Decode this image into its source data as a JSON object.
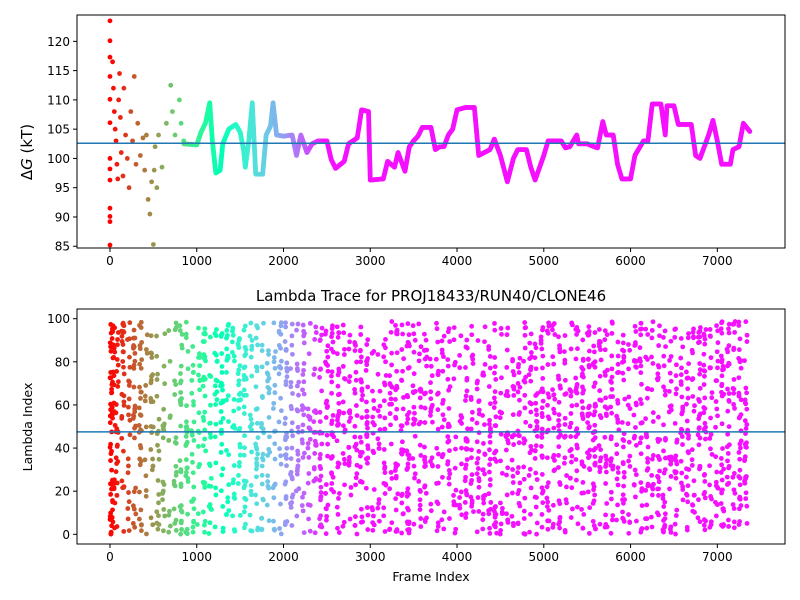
{
  "colors": {
    "axis": "#000000",
    "hline": "#1f77b4",
    "colormap": "rainbow"
  },
  "chart_data": [
    {
      "type": "scatter",
      "title": "",
      "xlabel": "",
      "ylabel": "ΔG (kT)",
      "ylabel_parts": {
        "delta": "Δ",
        "var": "G",
        "unit": " (kT)"
      },
      "xlim": [
        -380,
        7780
      ],
      "ylim": [
        84.7,
        124.5
      ],
      "xticks": [
        0,
        1000,
        2000,
        3000,
        4000,
        5000,
        6000,
        7000
      ],
      "yticks": [
        85,
        90,
        95,
        100,
        105,
        110,
        115,
        120
      ],
      "hline": 102.6,
      "grid": false,
      "color_by": "x, rainbow reversed (red at 0, violet after ~2500)",
      "noisy_points": [
        [
          0,
          123.5
        ],
        [
          0,
          120.1
        ],
        [
          0,
          117.3
        ],
        [
          0,
          114.0
        ],
        [
          0,
          110.1
        ],
        [
          0,
          106.1
        ],
        [
          0,
          100.0
        ],
        [
          0,
          98.2
        ],
        [
          0,
          96.3
        ],
        [
          0,
          91.5
        ],
        [
          0,
          89.2
        ],
        [
          0,
          90.1
        ],
        [
          0,
          85.2
        ],
        [
          30,
          116.5
        ],
        [
          40,
          112.0
        ],
        [
          50,
          108.0
        ],
        [
          60,
          105.0
        ],
        [
          70,
          103.0
        ],
        [
          80,
          99.0
        ],
        [
          90,
          96.5
        ],
        [
          100,
          110.0
        ],
        [
          110,
          114.5
        ],
        [
          120,
          107.0
        ],
        [
          130,
          101.0
        ],
        [
          150,
          97.0
        ],
        [
          160,
          112.0
        ],
        [
          180,
          104.0
        ],
        [
          200,
          100.0
        ],
        [
          220,
          95.0
        ],
        [
          240,
          108.0
        ],
        [
          260,
          103.0
        ],
        [
          280,
          114.0
        ],
        [
          300,
          99.0
        ],
        [
          320,
          106.0
        ],
        [
          350,
          100.5
        ],
        [
          380,
          103.5
        ],
        [
          400,
          98.0
        ],
        [
          420,
          104.0
        ],
        [
          440,
          93.0
        ],
        [
          460,
          90.5
        ],
        [
          480,
          96.0
        ],
        [
          500,
          85.3
        ],
        [
          510,
          98.0
        ],
        [
          520,
          102.0
        ],
        [
          540,
          95.0
        ],
        [
          560,
          104.0
        ],
        [
          600,
          98.5
        ],
        [
          650,
          106.0
        ],
        [
          700,
          112.5
        ],
        [
          720,
          108.0
        ],
        [
          750,
          104.0
        ],
        [
          800,
          110.0
        ],
        [
          820,
          106.0
        ],
        [
          850,
          103.0
        ]
      ],
      "trace": [
        [
          850,
          102.5
        ],
        [
          1000,
          102.3
        ],
        [
          1050,
          104.5
        ],
        [
          1100,
          106.0
        ],
        [
          1150,
          109.5
        ],
        [
          1180,
          103.0
        ],
        [
          1220,
          97.5
        ],
        [
          1270,
          98.0
        ],
        [
          1300,
          102.5
        ],
        [
          1370,
          105.0
        ],
        [
          1450,
          105.8
        ],
        [
          1500,
          104.5
        ],
        [
          1540,
          101.5
        ],
        [
          1560,
          98.5
        ],
        [
          1600,
          103.0
        ],
        [
          1640,
          109.5
        ],
        [
          1680,
          97.3
        ],
        [
          1760,
          97.3
        ],
        [
          1800,
          104.0
        ],
        [
          1850,
          105.5
        ],
        [
          1880,
          109.5
        ],
        [
          1920,
          104.0
        ],
        [
          2000,
          103.8
        ],
        [
          2100,
          104.0
        ],
        [
          2150,
          100.5
        ],
        [
          2200,
          104.0
        ],
        [
          2270,
          101.0
        ],
        [
          2330,
          102.5
        ],
        [
          2400,
          103.0
        ],
        [
          2500,
          103.0
        ],
        [
          2550,
          99.8
        ],
        [
          2600,
          98.3
        ],
        [
          2700,
          99.5
        ],
        [
          2750,
          102.5
        ],
        [
          2850,
          103.5
        ],
        [
          2900,
          108.3
        ],
        [
          2980,
          108.0
        ],
        [
          3000,
          96.3
        ],
        [
          3150,
          96.5
        ],
        [
          3200,
          99.5
        ],
        [
          3280,
          98.5
        ],
        [
          3320,
          101.0
        ],
        [
          3400,
          97.8
        ],
        [
          3450,
          102.0
        ],
        [
          3500,
          103.0
        ],
        [
          3550,
          103.8
        ],
        [
          3600,
          105.3
        ],
        [
          3700,
          105.3
        ],
        [
          3750,
          101.5
        ],
        [
          3800,
          102.0
        ],
        [
          3850,
          102.0
        ],
        [
          3900,
          104.0
        ],
        [
          3950,
          105.0
        ],
        [
          4000,
          108.3
        ],
        [
          4100,
          108.7
        ],
        [
          4200,
          108.7
        ],
        [
          4250,
          100.5
        ],
        [
          4380,
          101.5
        ],
        [
          4430,
          103.3
        ],
        [
          4500,
          100.5
        ],
        [
          4580,
          96.0
        ],
        [
          4650,
          100.0
        ],
        [
          4700,
          101.5
        ],
        [
          4800,
          101.5
        ],
        [
          4850,
          98.5
        ],
        [
          4900,
          96.3
        ],
        [
          5000,
          100.5
        ],
        [
          5050,
          103.0
        ],
        [
          5200,
          103.0
        ],
        [
          5250,
          101.8
        ],
        [
          5300,
          102.0
        ],
        [
          5380,
          104.0
        ],
        [
          5400,
          102.5
        ],
        [
          5500,
          102.5
        ],
        [
          5580,
          102.0
        ],
        [
          5620,
          101.8
        ],
        [
          5680,
          106.3
        ],
        [
          5720,
          104.0
        ],
        [
          5800,
          104.0
        ],
        [
          5850,
          99.0
        ],
        [
          5900,
          96.5
        ],
        [
          6000,
          96.5
        ],
        [
          6050,
          100.5
        ],
        [
          6150,
          103.0
        ],
        [
          6200,
          103.0
        ],
        [
          6250,
          109.3
        ],
        [
          6350,
          109.3
        ],
        [
          6400,
          104.0
        ],
        [
          6420,
          109.0
        ],
        [
          6500,
          109.0
        ],
        [
          6550,
          105.8
        ],
        [
          6700,
          105.8
        ],
        [
          6750,
          100.5
        ],
        [
          6800,
          100.0
        ],
        [
          6850,
          102.0
        ],
        [
          6900,
          104.0
        ],
        [
          6950,
          106.5
        ],
        [
          7000,
          103.0
        ],
        [
          7050,
          99.0
        ],
        [
          7150,
          99.0
        ],
        [
          7180,
          101.5
        ],
        [
          7250,
          102.0
        ],
        [
          7300,
          106.0
        ],
        [
          7380,
          104.5
        ]
      ]
    },
    {
      "type": "scatter",
      "title": "Lambda Trace for PROJ18433/RUN40/CLONE46",
      "xlabel": "Frame Index",
      "ylabel": "Lambda Index",
      "xlim": [
        -380,
        7780
      ],
      "ylim": [
        -4.5,
        104.5
      ],
      "xticks": [
        0,
        1000,
        2000,
        3000,
        4000,
        5000,
        6000,
        7000
      ],
      "yticks": [
        0,
        20,
        40,
        60,
        80,
        100
      ],
      "hline": 47.5,
      "grid": false,
      "color_by": "x, rainbow reversed",
      "x_range": [
        0,
        7380
      ],
      "y_range": [
        0,
        99
      ],
      "frames_approx": 7400
    }
  ]
}
